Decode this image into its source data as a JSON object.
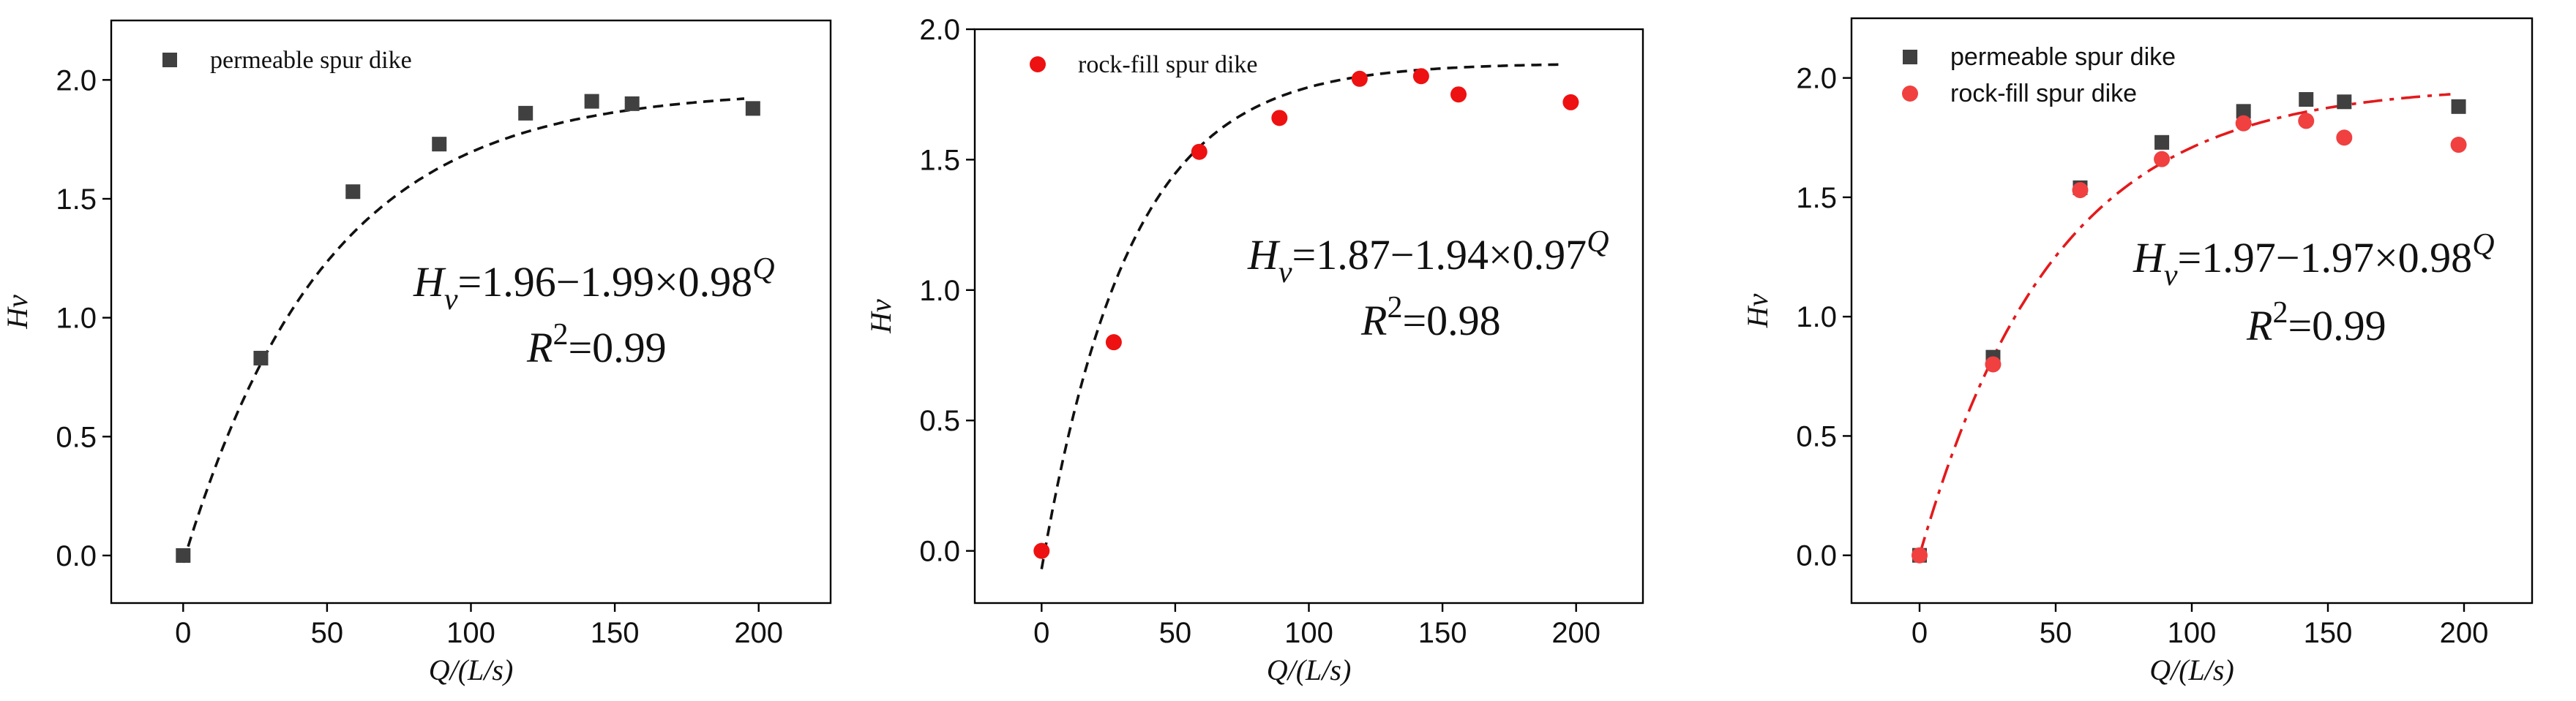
{
  "chart_data": [
    {
      "type": "scatter",
      "xlabel": "Q/(L/s)",
      "ylabel": "Hv",
      "xlim": [
        -25,
        225
      ],
      "ylim": [
        -0.2,
        2.25
      ],
      "xticks": [
        "0",
        "50",
        "100",
        "150",
        "200"
      ],
      "yticks": [
        "0.0",
        "0.5",
        "1.0",
        "1.5",
        "2.0"
      ],
      "series": [
        {
          "name": "permeable spur dike",
          "color": "#404040",
          "marker": "square",
          "x": [
            0,
            27,
            59,
            89,
            119,
            142,
            156,
            198
          ],
          "y": [
            0.0,
            0.83,
            1.53,
            1.73,
            1.86,
            1.91,
            1.9,
            1.88
          ]
        }
      ],
      "fit": {
        "a": 1.96,
        "b": 1.99,
        "c": 0.98,
        "xmax": 195,
        "color": "#111111"
      },
      "equation": {
        "lhs": "H",
        "sub": "v",
        "rhs": "=1.96−1.99×0.98",
        "sup": "Q",
        "r2_lhs": "R",
        "r2_sup": "2",
        "r2_rhs": "=0.99"
      }
    },
    {
      "type": "scatter",
      "xlabel": "Q/(L/s)",
      "ylabel": "Hv",
      "xlim": [
        -25,
        225
      ],
      "ylim": [
        -0.2,
        2.0
      ],
      "xticks": [
        "0",
        "50",
        "100",
        "150",
        "200"
      ],
      "yticks": [
        "0.0",
        "0.5",
        "1.0",
        "1.5",
        "2.0"
      ],
      "series": [
        {
          "name": "rock-fill spur dike",
          "color": "#ee1111",
          "marker": "circle",
          "x": [
            0,
            27,
            59,
            89,
            119,
            142,
            156,
            198
          ],
          "y": [
            0.0,
            0.8,
            1.53,
            1.66,
            1.81,
            1.82,
            1.75,
            1.72
          ]
        }
      ],
      "fit": {
        "a": 1.87,
        "b": 1.94,
        "c": 0.97,
        "xmax": 195,
        "color": "#111111"
      },
      "equation": {
        "lhs": "H",
        "sub": "v",
        "rhs": "=1.87−1.94×0.97",
        "sup": "Q",
        "r2_lhs": "R",
        "r2_sup": "2",
        "r2_rhs": "=0.98"
      }
    },
    {
      "type": "scatter",
      "xlabel": "Q/(L/s)",
      "ylabel": "Hv",
      "xlim": [
        -25,
        225
      ],
      "ylim": [
        -0.2,
        2.25
      ],
      "xticks": [
        "0",
        "50",
        "100",
        "150",
        "200"
      ],
      "yticks": [
        "0.0",
        "0.5",
        "1.0",
        "1.5",
        "2.0"
      ],
      "series": [
        {
          "name": "permeable spur dike",
          "color": "#404040",
          "marker": "square",
          "x": [
            0,
            27,
            59,
            89,
            119,
            142,
            156,
            198
          ],
          "y": [
            0.0,
            0.83,
            1.54,
            1.73,
            1.86,
            1.91,
            1.9,
            1.88
          ]
        },
        {
          "name": "rock-fill spur dike",
          "color": "#f04040",
          "marker": "circle",
          "x": [
            0,
            27,
            59,
            89,
            119,
            142,
            156,
            198
          ],
          "y": [
            0.0,
            0.8,
            1.53,
            1.66,
            1.81,
            1.82,
            1.75,
            1.72
          ]
        }
      ],
      "fit": {
        "a": 1.97,
        "b": 1.97,
        "c": 0.98,
        "xmax": 195,
        "color": "#e31a1c"
      },
      "equation": {
        "lhs": "H",
        "sub": "v",
        "rhs": "=1.97−1.97×0.98",
        "sup": "Q",
        "r2_lhs": "R",
        "r2_sup": "2",
        "r2_rhs": "=0.99"
      }
    }
  ]
}
